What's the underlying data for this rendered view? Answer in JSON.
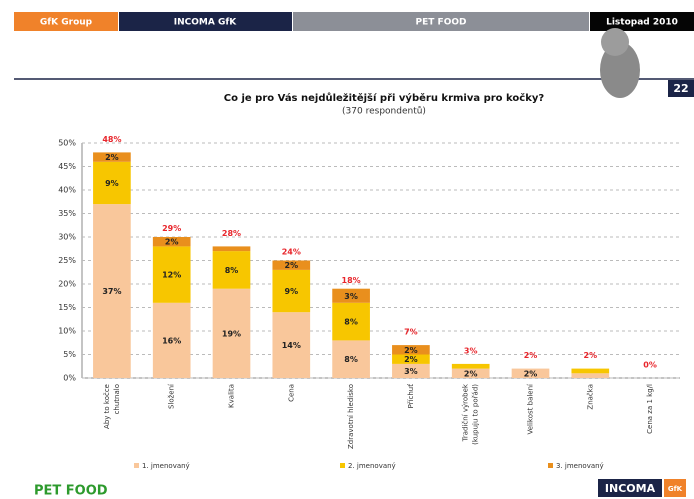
{
  "slide": {
    "header": [
      "GfK Group",
      "INCOMA GfK",
      "PET FOOD",
      "Listopad 2010"
    ],
    "page": "22",
    "footer_left": "PET FOOD",
    "footer_logo": "INCOMA",
    "footer_logo_small": "GfK"
  },
  "chart_data": {
    "type": "stacked-bar",
    "title": "Co je pro Vás nejdůležitější při výběru krmiva pro kočky?",
    "subtitle": "(370 respondentů)",
    "categories": [
      [
        "Aby to kočce",
        "chutnalo"
      ],
      [
        "Složení"
      ],
      [
        "Kvalita"
      ],
      [
        "Cena"
      ],
      [
        "Zdravotní hledisko"
      ],
      [
        "Příchuť"
      ],
      [
        "Tradiční výrobek",
        "(kupuju to pořád)"
      ],
      [
        "Velikost balení"
      ],
      [
        "Značka"
      ],
      [
        "Cena za 1 kg/l"
      ]
    ],
    "series": [
      {
        "name": "1. jmenovaný",
        "color": "#f9c79b",
        "values": [
          37,
          16,
          19,
          14,
          8,
          3,
          2,
          2,
          1,
          0
        ],
        "value_labels": [
          "37%",
          "16%",
          "19%",
          "14%",
          "8%",
          "3%",
          "2%",
          "2%",
          null,
          null
        ]
      },
      {
        "name": "2. jmenovaný",
        "color": "#f7c600",
        "values": [
          9,
          12,
          8,
          9,
          8,
          2,
          1,
          0,
          1,
          0
        ],
        "value_labels": [
          "9%",
          "12%",
          "8%",
          "9%",
          "8%",
          "2%",
          null,
          null,
          null,
          null
        ]
      },
      {
        "name": "3. jmenovaný",
        "color": "#e98f1d",
        "values": [
          2,
          2,
          1,
          2,
          3,
          2,
          0,
          0,
          0,
          0
        ],
        "value_labels": [
          "2%",
          "2%",
          null,
          "2%",
          "3%",
          "2%",
          null,
          null,
          null,
          null
        ]
      }
    ],
    "totals": [
      48,
      29,
      28,
      24,
      18,
      7,
      3,
      2,
      2,
      0
    ],
    "total_labels": [
      "48%",
      "29%",
      "28%",
      "24%",
      "18%",
      "7%",
      "3%",
      "2%",
      "2%",
      "0%"
    ],
    "total_color": "#e8252b",
    "ylim": [
      0,
      50
    ],
    "yticks": [
      {
        "value": 0,
        "label": "0%"
      },
      {
        "value": 5,
        "label": "5%"
      },
      {
        "value": 10,
        "label": "10%"
      },
      {
        "value": 15,
        "label": "15%"
      },
      {
        "value": 20,
        "label": "20%"
      },
      {
        "value": 25,
        "label": "25%"
      },
      {
        "value": 30,
        "label": "30%"
      },
      {
        "value": 35,
        "label": "35%"
      },
      {
        "value": 40,
        "label": "40%"
      },
      {
        "value": 45,
        "label": "45%"
      },
      {
        "value": 50,
        "label": "50%"
      }
    ],
    "grid": true
  }
}
